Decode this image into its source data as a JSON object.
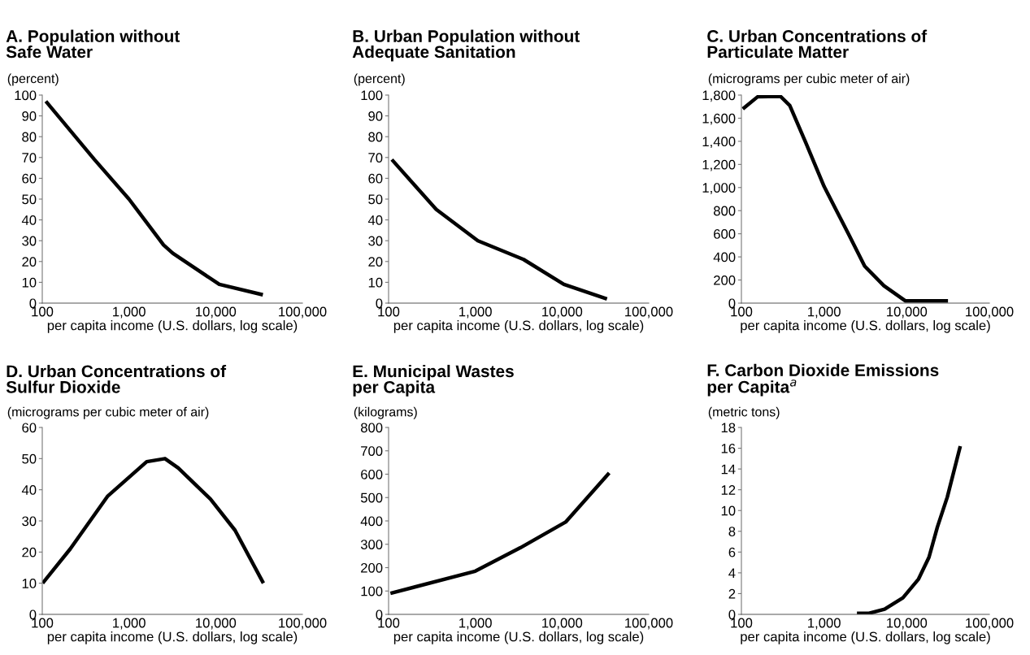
{
  "chart_data": [
    {
      "type": "line",
      "title": "A. Population without\nSafe Water",
      "ylabel": "(percent)",
      "xlabel": "per capita income (U.S. dollars, log scale)",
      "log": "x",
      "grid": false,
      "marker": "none",
      "line_style": "solid",
      "x": [
        110,
        400,
        1000,
        2500,
        3200,
        11000,
        35000
      ],
      "series": [
        {
          "color": "#000000",
          "values": [
            97,
            69,
            50,
            28,
            24,
            9,
            4
          ]
        }
      ],
      "xlim": [
        100,
        100000
      ],
      "xticks": [
        100,
        {
          "value": 1000,
          "label": "1,000"
        },
        {
          "value": 10000,
          "label": "10,000"
        },
        {
          "value": 100000,
          "label": "100,000"
        }
      ],
      "ylim": [
        0,
        100
      ],
      "yticks": [
        0,
        10,
        20,
        30,
        40,
        50,
        60,
        70,
        80,
        90,
        100
      ]
    },
    {
      "type": "line",
      "title": "B. Urban Population without\nAdequate Sanitation",
      "ylabel": "(percent)",
      "xlabel": "per capita income (U.S. dollars, log scale)",
      "log": "x",
      "grid": false,
      "marker": "none",
      "line_style": "solid",
      "x": [
        109,
        355,
        1070,
        3600,
        10500,
        33000
      ],
      "series": [
        {
          "color": "#000000",
          "values": [
            69,
            45,
            30,
            21,
            9,
            2
          ]
        }
      ],
      "xlim": [
        100,
        100000
      ],
      "xticks": [
        100,
        {
          "value": 1000,
          "label": "1,000"
        },
        {
          "value": 10000,
          "label": "10,000"
        },
        {
          "value": 100000,
          "label": "100,000"
        }
      ],
      "ylim": [
        0,
        100
      ],
      "yticks": [
        0,
        10,
        20,
        30,
        40,
        50,
        60,
        70,
        80,
        90,
        100
      ]
    },
    {
      "type": "line",
      "title": "C. Urban Concentrations of\nParticulate Matter",
      "ylabel": "(micrograms per cubic meter of air)",
      "xlabel": "per capita income (U.S. dollars, log scale)",
      "log": "x",
      "grid": false,
      "marker": "none",
      "line_style": "solid",
      "x": [
        104,
        157,
        296,
        385,
        600,
        1000,
        2000,
        3100,
        5300,
        9600,
        31600
      ],
      "series": [
        {
          "color": "#000000",
          "values": [
            1680,
            1785,
            1790,
            1710,
            1390,
            1010,
            590,
            320,
            150,
            20,
            20
          ]
        }
      ],
      "xlim": [
        100,
        100000
      ],
      "xticks": [
        100,
        {
          "value": 1000,
          "label": "1,000"
        },
        {
          "value": 10000,
          "label": "10,000"
        },
        {
          "value": 100000,
          "label": "100,000"
        }
      ],
      "ylim": [
        0,
        1800
      ],
      "yticks": [
        0,
        200,
        400,
        600,
        800,
        {
          "value": 1000,
          "label": "1,000"
        },
        {
          "value": 1200,
          "label": "1,200"
        },
        {
          "value": 1400,
          "label": "1,400"
        },
        {
          "value": 1600,
          "label": "1,600"
        },
        {
          "value": 1800,
          "label": "1,800"
        }
      ]
    },
    {
      "type": "line",
      "title": "D. Urban Concentrations of\nSulfur Dioxide",
      "ylabel": "(micrograms per cubic meter of air)",
      "xlabel": "per capita income (U.S. dollars, log scale)",
      "log": "x",
      "grid": false,
      "marker": "none",
      "line_style": "solid",
      "x": [
        101,
        210,
        570,
        1000,
        1600,
        2600,
        3700,
        8700,
        16700,
        35500
      ],
      "series": [
        {
          "color": "#000000",
          "values": [
            10,
            21,
            38,
            44,
            49,
            50,
            47,
            37,
            27,
            10
          ]
        }
      ],
      "xlim": [
        100,
        100000
      ],
      "xticks": [
        100,
        {
          "value": 1000,
          "label": "1,000"
        },
        {
          "value": 10000,
          "label": "10,000"
        },
        {
          "value": 100000,
          "label": "100,000"
        }
      ],
      "ylim": [
        0,
        60
      ],
      "yticks": [
        0,
        10,
        20,
        30,
        40,
        50,
        60
      ]
    },
    {
      "type": "line",
      "title": "E. Municipal Wastes\nper Capita",
      "ylabel": "(kilograms)",
      "xlabel": "per capita income (U.S. dollars, log scale)",
      "log": "x",
      "grid": false,
      "marker": "none",
      "line_style": "solid",
      "x": [
        105,
        1000,
        3300,
        11000,
        35000
      ],
      "series": [
        {
          "color": "#000000",
          "values": [
            90,
            185,
            285,
            395,
            605
          ]
        }
      ],
      "xlim": [
        100,
        100000
      ],
      "xticks": [
        100,
        {
          "value": 1000,
          "label": "1,000"
        },
        {
          "value": 10000,
          "label": "10,000"
        },
        {
          "value": 100000,
          "label": "100,000"
        }
      ],
      "ylim": [
        0,
        800
      ],
      "yticks": [
        0,
        100,
        200,
        300,
        400,
        500,
        600,
        700,
        800
      ]
    },
    {
      "type": "line",
      "title": "F. Carbon Dioxide Emissions\nper Capita$^{a}$",
      "ylabel": "(metric tons)",
      "xlabel": "per capita income (U.S. dollars, log scale)",
      "log": "x",
      "grid": false,
      "marker": "none",
      "line_style": "solid",
      "x": [
        2500,
        3500,
        5400,
        9000,
        13900,
        18600,
        23500,
        31000,
        44500
      ],
      "series": [
        {
          "color": "#000000",
          "values": [
            0.1,
            0.1,
            0.5,
            1.6,
            3.4,
            5.5,
            8.4,
            11.3,
            16.2
          ]
        }
      ],
      "xlim": [
        100,
        100000
      ],
      "xticks": [
        100,
        {
          "value": 1000,
          "label": "1,000"
        },
        {
          "value": 10000,
          "label": "10,000"
        },
        {
          "value": 100000,
          "label": "100,000"
        }
      ],
      "ylim": [
        0,
        18
      ],
      "yticks": [
        0,
        2,
        4,
        6,
        8,
        10,
        12,
        14,
        16,
        18
      ]
    }
  ]
}
